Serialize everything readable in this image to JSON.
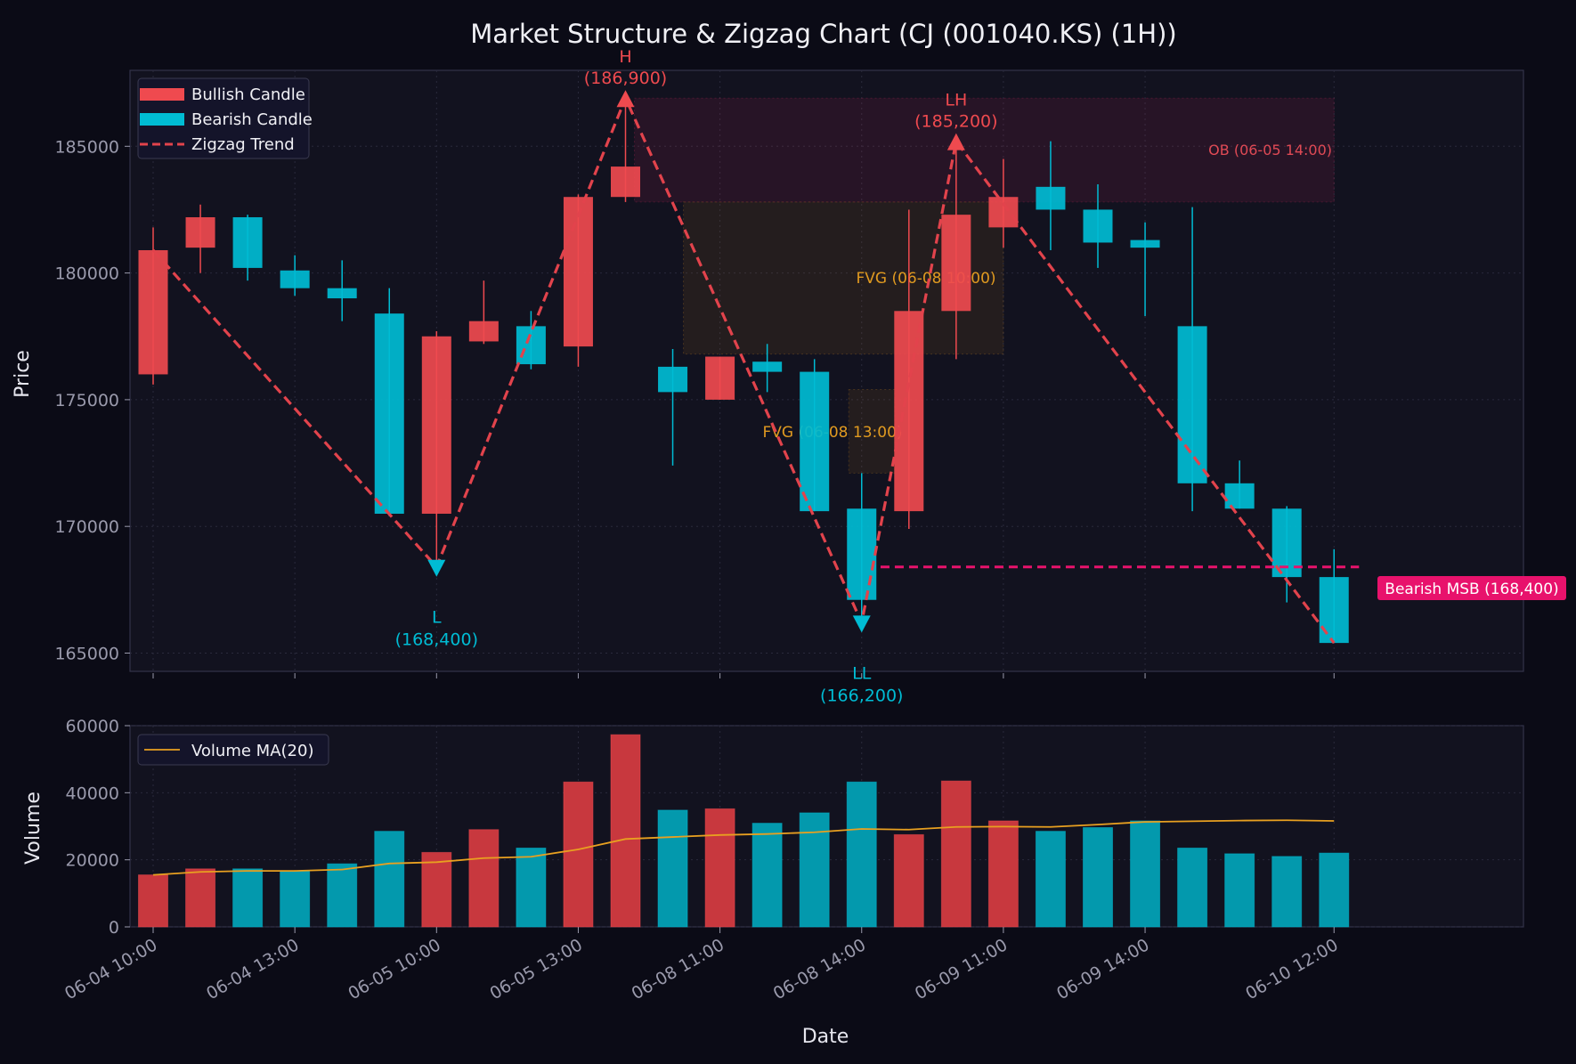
{
  "chart_data": [
    {
      "type": "candlestick",
      "title": "Market Structure & Zigzag Chart (CJ (001040.KS) (1H))",
      "xlabel": "",
      "ylabel": "Price",
      "ylim": [
        164000,
        188500
      ],
      "yticks": [
        165000,
        170000,
        175000,
        180000,
        185000
      ],
      "ytick_labels": [
        "165000",
        "170000",
        "175000",
        "180000",
        "185000"
      ],
      "grid": true,
      "legend_position": "top-left",
      "legend": [
        "Bullish Candle",
        "Bearish Candle",
        "Zigzag Trend"
      ],
      "colors": {
        "bullish": "#ef4a4f",
        "bearish": "#00bcd4",
        "zigzag": "#e2434c",
        "msb": "#e8126c",
        "fvg": "#e0a030",
        "ob": "#ef4a4f"
      },
      "candles": [
        {
          "o": 176000,
          "h": 181800,
          "l": 175600,
          "c": 180900,
          "dir": "bull"
        },
        {
          "o": 181000,
          "h": 182700,
          "l": 180000,
          "c": 182200,
          "dir": "bull"
        },
        {
          "o": 182200,
          "h": 182300,
          "l": 179700,
          "c": 180200,
          "dir": "bear"
        },
        {
          "o": 180100,
          "h": 180700,
          "l": 179100,
          "c": 179400,
          "dir": "bear"
        },
        {
          "o": 179400,
          "h": 180500,
          "l": 178100,
          "c": 179000,
          "dir": "bear"
        },
        {
          "o": 178400,
          "h": 179400,
          "l": 170400,
          "c": 170500,
          "dir": "bear"
        },
        {
          "o": 170500,
          "h": 177700,
          "l": 168400,
          "c": 177500,
          "dir": "bull"
        },
        {
          "o": 177300,
          "h": 179700,
          "l": 177200,
          "c": 178100,
          "dir": "bull"
        },
        {
          "o": 177900,
          "h": 178500,
          "l": 176200,
          "c": 176400,
          "dir": "bear"
        },
        {
          "o": 177100,
          "h": 183100,
          "l": 176300,
          "c": 183000,
          "dir": "bull"
        },
        {
          "o": 183000,
          "h": 186900,
          "l": 182800,
          "c": 184200,
          "dir": "bull"
        },
        {
          "o": 176300,
          "h": 177000,
          "l": 172400,
          "c": 175300,
          "dir": "bear"
        },
        {
          "o": 175000,
          "h": 176700,
          "l": 175000,
          "c": 176700,
          "dir": "bull"
        },
        {
          "o": 176500,
          "h": 177200,
          "l": 175300,
          "c": 176100,
          "dir": "bear"
        },
        {
          "o": 176100,
          "h": 176600,
          "l": 170600,
          "c": 170600,
          "dir": "bear"
        },
        {
          "o": 170700,
          "h": 172100,
          "l": 166200,
          "c": 167100,
          "dir": "bear"
        },
        {
          "o": 170600,
          "h": 182500,
          "l": 169900,
          "c": 178500,
          "dir": "bull"
        },
        {
          "o": 178500,
          "h": 185200,
          "l": 176600,
          "c": 182300,
          "dir": "bull"
        },
        {
          "o": 181800,
          "h": 184500,
          "l": 181000,
          "c": 183000,
          "dir": "bull"
        },
        {
          "o": 183400,
          "h": 185200,
          "l": 180900,
          "c": 182500,
          "dir": "bear"
        },
        {
          "o": 182500,
          "h": 183500,
          "l": 180200,
          "c": 181200,
          "dir": "bear"
        },
        {
          "o": 181300,
          "h": 182000,
          "l": 178300,
          "c": 181000,
          "dir": "bear"
        },
        {
          "o": 177900,
          "h": 182600,
          "l": 170600,
          "c": 171700,
          "dir": "bear"
        },
        {
          "o": 171700,
          "h": 172600,
          "l": 170700,
          "c": 170700,
          "dir": "bear"
        },
        {
          "o": 170700,
          "h": 170800,
          "l": 167000,
          "c": 168000,
          "dir": "bear"
        },
        {
          "o": 168000,
          "h": 169100,
          "l": 165400,
          "c": 165400,
          "dir": "bear"
        }
      ],
      "zigzag": [
        {
          "i": 0,
          "y": 180900
        },
        {
          "i": 6,
          "y": 168400
        },
        {
          "i": 10,
          "y": 186900
        },
        {
          "i": 15,
          "y": 166200
        },
        {
          "i": 17,
          "y": 185200
        },
        {
          "i": 25,
          "y": 165400
        }
      ],
      "pivots": [
        {
          "i": 6,
          "y": 168400,
          "type": "L",
          "label": "L",
          "value": "(168,400)",
          "dir": "low"
        },
        {
          "i": 10,
          "y": 186900,
          "type": "H",
          "label": "H",
          "value": "(186,900)",
          "dir": "high"
        },
        {
          "i": 15,
          "y": 166200,
          "type": "LL",
          "label": "LL",
          "value": "(166,200)",
          "dir": "low"
        },
        {
          "i": 17,
          "y": 185200,
          "type": "LH",
          "label": "LH",
          "value": "(185,200)",
          "dir": "high"
        }
      ],
      "zones": [
        {
          "kind": "ob",
          "label": "OB (06-05 14:00)",
          "i0": 10,
          "i1": 25,
          "y0": 182800,
          "y1": 186900
        },
        {
          "kind": "fvg",
          "label": "FVG (06-08 10:00)",
          "i0": 11,
          "i1": 18,
          "y0": 176800,
          "y1": 182800
        },
        {
          "kind": "fvg",
          "label": "FVG (06-08 13:00)",
          "i0": 14.5,
          "i1": 15.7,
          "y0": 172100,
          "y1": 175400
        }
      ],
      "msb": {
        "label": "Bearish MSB (168,400)",
        "y": 168400,
        "i0": 15.4,
        "i1": 26
      }
    },
    {
      "type": "bar",
      "title": "",
      "xlabel": "Date",
      "ylabel": "Volume",
      "ylim": [
        0,
        60000
      ],
      "yticks": [
        0,
        20000,
        40000,
        60000
      ],
      "ytick_labels": [
        "0",
        "20000",
        "40000",
        "60000"
      ],
      "legend": [
        "Volume MA(20)"
      ],
      "legend_position": "top-left",
      "ma_color": "#e8a020",
      "volumes": [
        15500,
        17300,
        17300,
        16600,
        18800,
        28500,
        22200,
        29000,
        23500,
        43200,
        57300,
        34800,
        35200,
        30900,
        34000,
        43200,
        27500,
        43500,
        31600,
        28500,
        29600,
        31600,
        23500,
        21800,
        21000,
        22000
      ],
      "ma20": [
        15500,
        16400,
        16700,
        16700,
        17100,
        18900,
        19300,
        20500,
        20900,
        23100,
        26200,
        26800,
        27400,
        27700,
        28200,
        29200,
        29000,
        29800,
        29900,
        29800,
        30500,
        31300,
        31500,
        31700,
        31800,
        31600
      ],
      "x_tick_indices": [
        0,
        3,
        6,
        9,
        12,
        15,
        18,
        21,
        25
      ],
      "x_tick_labels": [
        "06-04 10:00",
        "06-04 13:00",
        "06-05 10:00",
        "06-05 13:00",
        "06-08 11:00",
        "06-08 14:00",
        "06-09 11:00",
        "06-09 14:00",
        "06-10 12:00"
      ]
    }
  ]
}
